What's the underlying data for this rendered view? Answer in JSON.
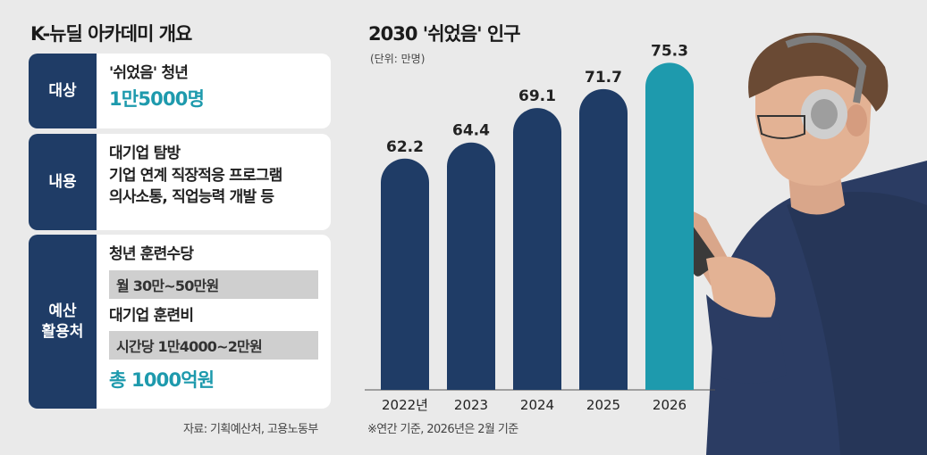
{
  "left_panel": {
    "title": "K-뉴딜 아카데미 개요",
    "rows": [
      {
        "label": "대상",
        "line1": "'쉬었음' 청년",
        "highlight": "1만5000명"
      },
      {
        "label": "내용",
        "lines": [
          "대기업 탐방",
          "기업 연계 직장적응 프로그램",
          "의사소통, 직업능력 개발 등"
        ]
      },
      {
        "label_lines": [
          "예산",
          "활용처"
        ],
        "item1": "청년 훈련수당",
        "item1_value": "월 30만~50만원",
        "item2": "대기업 훈련비",
        "item2_value": "시간당 1만4000~2만원",
        "total": "총 1000억원"
      }
    ],
    "source": "자료: 기획예산처, 고용노동부"
  },
  "chart_data": {
    "type": "bar",
    "title": "2030 '쉬었음' 인구",
    "unit": "(단위: 만명)",
    "categories": [
      "2022년",
      "2023",
      "2024",
      "2025",
      "2026"
    ],
    "values": [
      62.2,
      64.4,
      69.1,
      71.7,
      75.3
    ],
    "value_labels": [
      "62.2",
      "64.4",
      "69.1",
      "71.7",
      "75.3"
    ],
    "colors": [
      "#1f3c66",
      "#1f3c66",
      "#1f3c66",
      "#1f3c66",
      "#1e9aad"
    ],
    "note": "※연간 기준, 2026년은 2월 기준"
  }
}
